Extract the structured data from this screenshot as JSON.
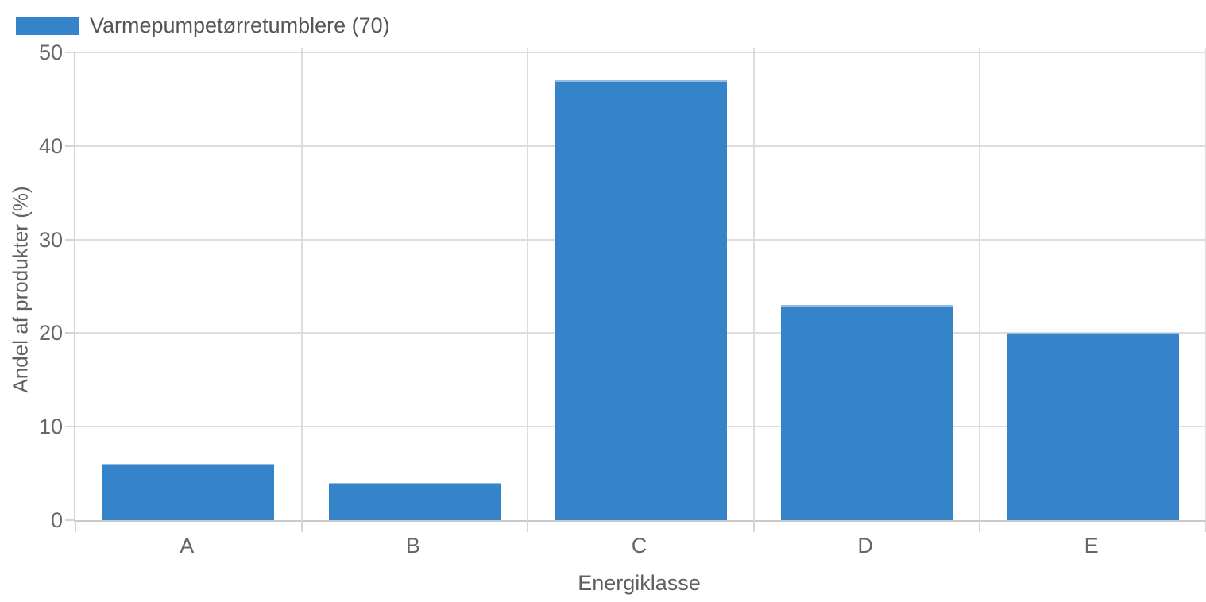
{
  "chart_data": {
    "type": "bar",
    "title": "",
    "categories": [
      "A",
      "B",
      "C",
      "D",
      "E"
    ],
    "values": [
      6,
      4,
      47,
      23,
      20
    ],
    "series": [
      {
        "name": "Varmepumpetørretumblere (70)",
        "values": [
          6,
          4,
          47,
          23,
          20
        ]
      }
    ],
    "xlabel": "Energiklasse",
    "ylabel": "Andel af produkter (%)",
    "ylim": [
      0,
      50
    ],
    "yticks": [
      0,
      10,
      20,
      30,
      40,
      50
    ],
    "grid": true,
    "legend": {
      "label": "Varmepumpetørretumblere (70)",
      "position": "top-left"
    },
    "colors": {
      "bar": "#3583c9",
      "bar_edge": "#94bde3",
      "grid": "#dddddd",
      "axis": "#c9c9c9",
      "tick_text": "#666668",
      "title_text": "#5f6062",
      "legend_text": "#555658",
      "background": "#ffffff"
    }
  }
}
